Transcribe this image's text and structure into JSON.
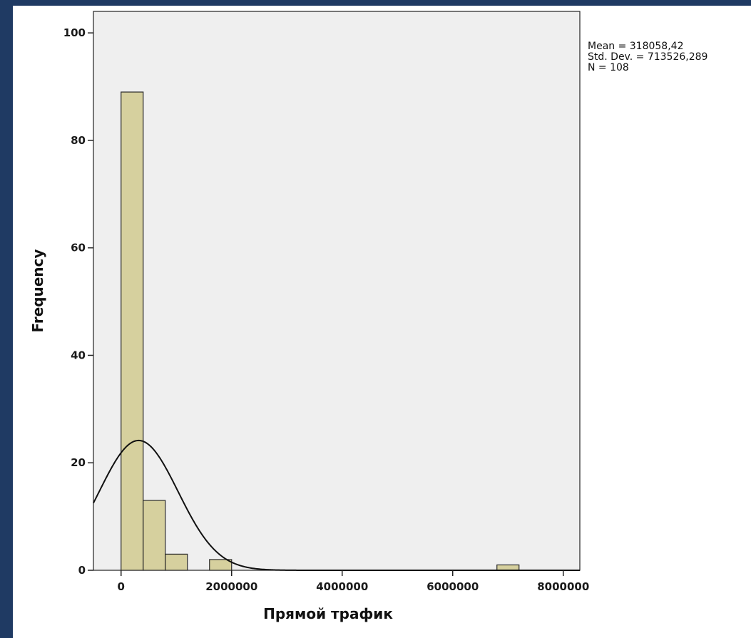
{
  "chart_data": {
    "type": "bar",
    "subtype": "histogram",
    "xlabel": "Прямой трафик",
    "ylabel": "Frequency",
    "xlim": [
      -500000,
      8300000
    ],
    "ylim": [
      0,
      104
    ],
    "x_ticks": [
      "0",
      "2000000",
      "4000000",
      "6000000",
      "8000000"
    ],
    "y_ticks": [
      "0",
      "20",
      "40",
      "60",
      "80",
      "100"
    ],
    "bin_width": 400000,
    "bins": [
      {
        "start": 0,
        "end": 400000,
        "count": 89
      },
      {
        "start": 400000,
        "end": 800000,
        "count": 13
      },
      {
        "start": 800000,
        "end": 1200000,
        "count": 3
      },
      {
        "start": 1600000,
        "end": 2000000,
        "count": 2
      },
      {
        "start": 6800000,
        "end": 7200000,
        "count": 1
      }
    ],
    "normal_curve": {
      "mean": 318058.42,
      "std_dev": 713526.289,
      "n": 108
    },
    "stats": {
      "mean": "Mean = 318058,42",
      "std_dev": "Std. Dev. = 713526,289",
      "n": "N = 108"
    },
    "legend_position": "top-right",
    "grid": false,
    "colors": {
      "bar_fill": "#d6d09e",
      "bar_stroke": "#2a2a2a",
      "plot_bg": "#efefef",
      "curve": "#111111"
    }
  }
}
